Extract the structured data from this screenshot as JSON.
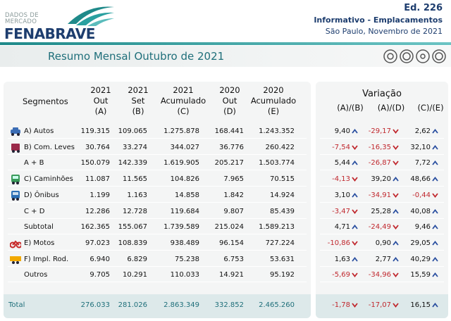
{
  "header": {
    "brand_top": [
      "DADOS DE",
      "MERCADO"
    ],
    "brand": "FENABRAVE",
    "edition": "Ed. 226",
    "subtitle": "Informativo - Emplacamentos",
    "place_date": "São Paulo, Novembro de 2021"
  },
  "title": "Resumo Mensal Outubro de 2021",
  "table": {
    "segment_header": "Segmentos",
    "columns": [
      [
        "2021",
        "Out",
        "(A)"
      ],
      [
        "2021",
        "Set",
        "(B)"
      ],
      [
        "2021",
        "Acumulado",
        "(C)"
      ],
      [
        "2020",
        "Out",
        "(D)"
      ],
      [
        "2020",
        "Acumulado",
        "(E)"
      ]
    ],
    "variation_title": "Variação",
    "variation_columns": [
      "(A)/(B)",
      "(A)/(D)",
      "(C)/(E)"
    ],
    "rows": [
      {
        "label": "A) Autos",
        "values": [
          "119.315",
          "109.065",
          "1.275.878",
          "168.441",
          "1.243.352"
        ],
        "variations": [
          "9,40",
          "-29,17",
          "2,62"
        ],
        "trends": [
          "up",
          "down",
          "up"
        ]
      },
      {
        "label": "B) Com. Leves",
        "values": [
          "30.764",
          "33.274",
          "344.027",
          "36.776",
          "260.422"
        ],
        "variations": [
          "-7,54",
          "-16,35",
          "32,10"
        ],
        "trends": [
          "down",
          "down",
          "up"
        ]
      },
      {
        "label": "A + B",
        "values": [
          "150.079",
          "142.339",
          "1.619.905",
          "205.217",
          "1.503.774"
        ],
        "variations": [
          "5,44",
          "-26,87",
          "7,72"
        ],
        "trends": [
          "up",
          "down",
          "up"
        ]
      },
      {
        "label": "C) Caminhões",
        "values": [
          "11.087",
          "11.565",
          "104.826",
          "7.965",
          "70.515"
        ],
        "variations": [
          "-4,13",
          "39,20",
          "48,66"
        ],
        "trends": [
          "down",
          "up",
          "up"
        ]
      },
      {
        "label": "D) Ônibus",
        "values": [
          "1.199",
          "1.163",
          "14.858",
          "1.842",
          "14.924"
        ],
        "variations": [
          "3,10",
          "-34,91",
          "-0,44"
        ],
        "trends": [
          "up",
          "down",
          "down"
        ]
      },
      {
        "label": "C + D",
        "values": [
          "12.286",
          "12.728",
          "119.684",
          "9.807",
          "85.439"
        ],
        "variations": [
          "-3,47",
          "25,28",
          "40,08"
        ],
        "trends": [
          "down",
          "up",
          "up"
        ]
      },
      {
        "label": "Subtotal",
        "values": [
          "162.365",
          "155.067",
          "1.739.589",
          "215.024",
          "1.589.213"
        ],
        "variations": [
          "4,71",
          "-24,49",
          "9,46"
        ],
        "trends": [
          "up",
          "down",
          "up"
        ]
      },
      {
        "label": "E) Motos",
        "values": [
          "97.023",
          "108.839",
          "938.489",
          "96.154",
          "727.224"
        ],
        "variations": [
          "-10,86",
          "0,90",
          "29,05"
        ],
        "trends": [
          "down",
          "up",
          "up"
        ]
      },
      {
        "label": "F) Impl. Rod.",
        "values": [
          "6.940",
          "6.829",
          "75.238",
          "6.753",
          "53.631"
        ],
        "variations": [
          "1,63",
          "2,77",
          "40,29"
        ],
        "trends": [
          "up",
          "up",
          "up"
        ]
      },
      {
        "label": "Outros",
        "values": [
          "9.705",
          "10.291",
          "110.033",
          "14.921",
          "95.192"
        ],
        "variations": [
          "-5,69",
          "-34,96",
          "15,59"
        ],
        "trends": [
          "down",
          "down",
          "up"
        ]
      }
    ],
    "total": {
      "label": "Total",
      "values": [
        "276.033",
        "281.026",
        "2.863.349",
        "332.852",
        "2.465.260"
      ],
      "variations": [
        "-1,78",
        "-17,07",
        "16,15"
      ],
      "trends": [
        "down",
        "down",
        "up"
      ]
    }
  }
}
